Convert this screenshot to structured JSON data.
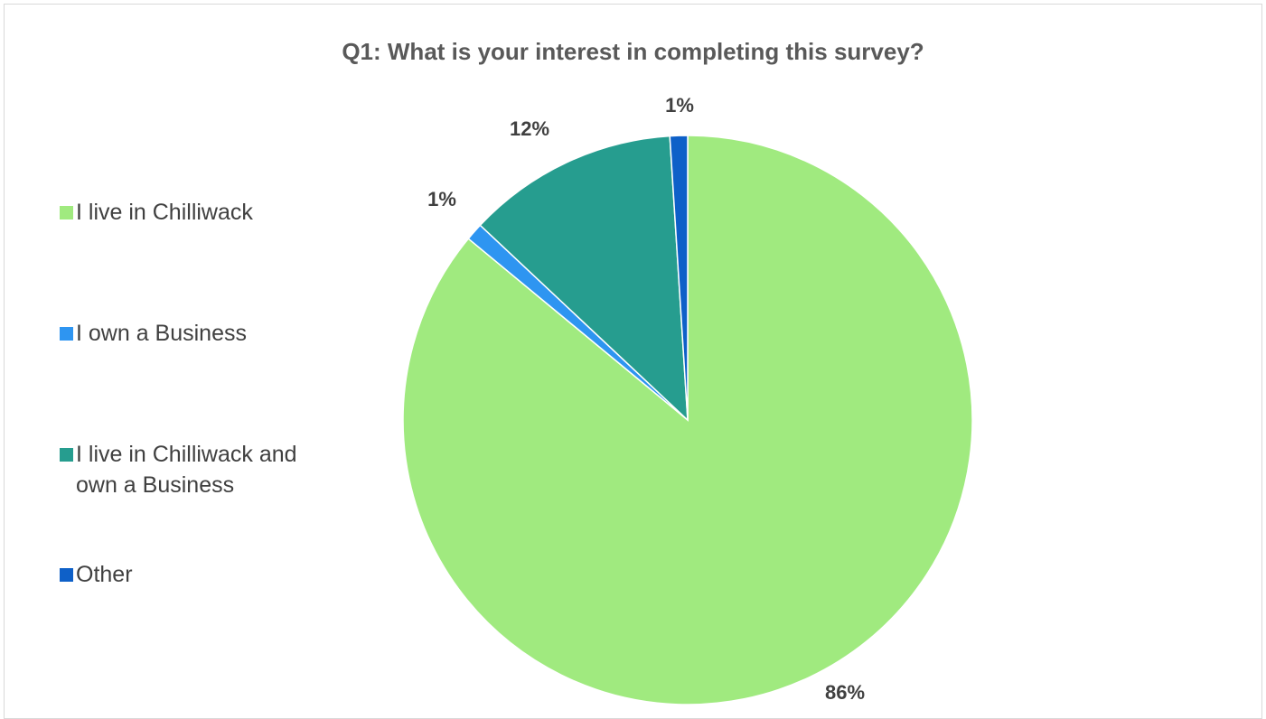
{
  "chart_data": {
    "type": "pie",
    "title": "Q1: What is your interest in completing this survey?",
    "categories": [
      "I live in Chilliwack",
      "I own a Business",
      "I live in Chilliwack and own a Business",
      "Other"
    ],
    "legend_labels": [
      [
        "I live in Chilliwack"
      ],
      [
        "I own a Business"
      ],
      [
        "I live in Chilliwack and",
        "own a Business"
      ],
      [
        "Other"
      ]
    ],
    "values": [
      86,
      1,
      12,
      1
    ],
    "data_labels": [
      "86%",
      "1%",
      "12%",
      "1%"
    ],
    "colors": [
      "#a0ea7f",
      "#2e95f1",
      "#269d8f",
      "#0e60c8"
    ],
    "start_angle_deg": 0,
    "direction": "clockwise",
    "legend_position": "left"
  }
}
